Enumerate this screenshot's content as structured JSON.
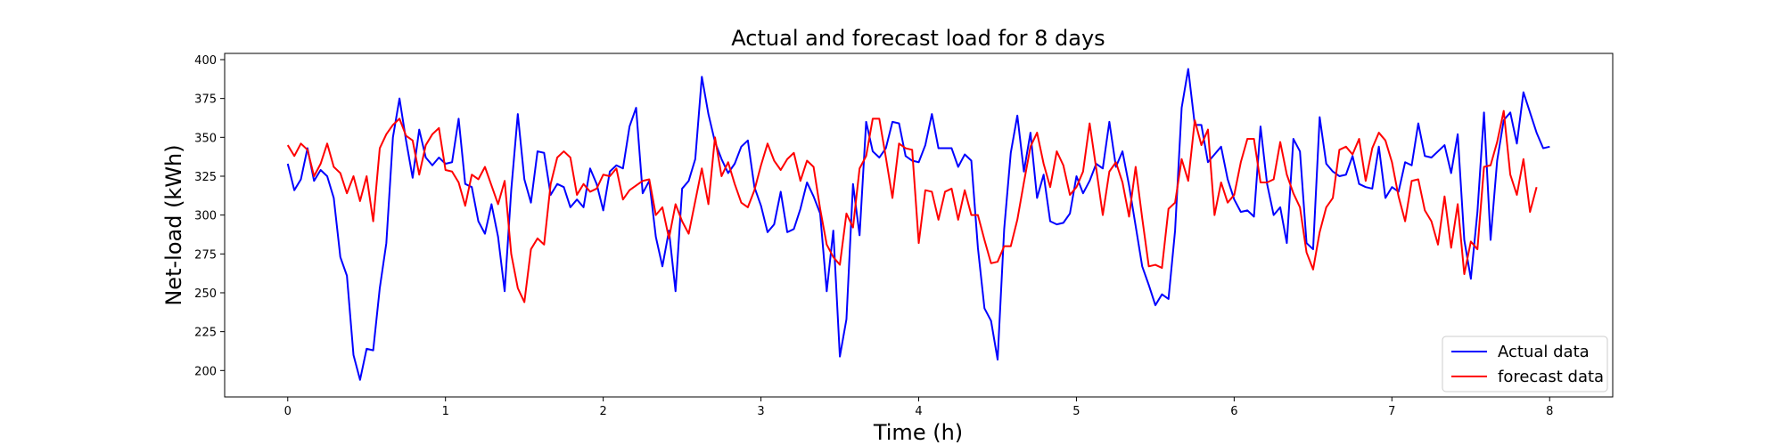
{
  "chart_data": {
    "type": "line",
    "title": "Actual and forecast load for 8 days",
    "xlabel": "Time (h)",
    "ylabel": "Net-load (kWh)",
    "xlim": [
      -0.4,
      8.4
    ],
    "ylim": [
      183,
      404
    ],
    "xticks": [
      0,
      1,
      2,
      3,
      4,
      5,
      6,
      7,
      8
    ],
    "yticks": [
      200,
      225,
      250,
      275,
      300,
      325,
      350,
      375,
      400
    ],
    "grid": false,
    "legend_position": "bottom-right",
    "x_step": 0.04167,
    "series": [
      {
        "name": "Actual data",
        "color": "#0000ff",
        "values": [
          333,
          316,
          323,
          343,
          322,
          329,
          325,
          311,
          273,
          261,
          210,
          194,
          214,
          213,
          253,
          282,
          350,
          375,
          348,
          324,
          355,
          337,
          332,
          337,
          333,
          334,
          362,
          320,
          318,
          296,
          288,
          307,
          286,
          251,
          316,
          365,
          323,
          308,
          341,
          340,
          313,
          320,
          318,
          305,
          310,
          305,
          330,
          320,
          303,
          328,
          332,
          330,
          357,
          369,
          314,
          322,
          286,
          267,
          290,
          251,
          317,
          322,
          336,
          389,
          365,
          347,
          336,
          327,
          333,
          344,
          348,
          318,
          306,
          289,
          294,
          315,
          289,
          291,
          304,
          321,
          312,
          301,
          251,
          290,
          209,
          233,
          320,
          287,
          360,
          341,
          337,
          343,
          360,
          359,
          338,
          335,
          334,
          345,
          365,
          343,
          343,
          343,
          331,
          339,
          335,
          279,
          240,
          232,
          207,
          291,
          340,
          364,
          328,
          353,
          311,
          326,
          296,
          294,
          295,
          301,
          325,
          314,
          322,
          333,
          330,
          360,
          331,
          341,
          319,
          293,
          267,
          255,
          242,
          249,
          246,
          290,
          369,
          394,
          358,
          358,
          334,
          339,
          344,
          323,
          310,
          302,
          303,
          299,
          357,
          320,
          300,
          305,
          282,
          349,
          341,
          282,
          278,
          363,
          333,
          328,
          325,
          326,
          338,
          320,
          318,
          317,
          344,
          311,
          318,
          315,
          334,
          332,
          359,
          338,
          337,
          341,
          345,
          327,
          352,
          284,
          259,
          302,
          366,
          284,
          335,
          361,
          366,
          346,
          379,
          366,
          353,
          343,
          344
        ]
      },
      {
        "name": "forecast data",
        "color": "#ff0000",
        "values": [
          345,
          338,
          346,
          342,
          325,
          333,
          346,
          331,
          327,
          314,
          325,
          309,
          325,
          296,
          343,
          352,
          358,
          362,
          351,
          348,
          326,
          345,
          352,
          356,
          329,
          328,
          321,
          306,
          326,
          323,
          331,
          319,
          307,
          322,
          275,
          253,
          244,
          278,
          285,
          281,
          320,
          337,
          341,
          337,
          313,
          320,
          315,
          317,
          326,
          325,
          330,
          310,
          316,
          319,
          322,
          323,
          300,
          305,
          285,
          307,
          296,
          288,
          309,
          330,
          307,
          350,
          325,
          334,
          320,
          308,
          305,
          316,
          332,
          346,
          335,
          329,
          336,
          340,
          322,
          335,
          331,
          304,
          281,
          273,
          268,
          301,
          292,
          330,
          338,
          362,
          362,
          337,
          311,
          346,
          343,
          342,
          282,
          316,
          315,
          297,
          315,
          317,
          297,
          316,
          300,
          300,
          284,
          269,
          270,
          280,
          280,
          297,
          321,
          344,
          353,
          333,
          318,
          341,
          332,
          313,
          318,
          328,
          359,
          330,
          300,
          328,
          334,
          321,
          299,
          331,
          298,
          267,
          268,
          266,
          304,
          308,
          336,
          322,
          361,
          345,
          355,
          300,
          321,
          308,
          313,
          334,
          349,
          349,
          321,
          321,
          323,
          347,
          326,
          314,
          305,
          276,
          265,
          289,
          305,
          311,
          342,
          344,
          339,
          349,
          322,
          343,
          353,
          348,
          334,
          312,
          296,
          322,
          323,
          303,
          296,
          281,
          312,
          279,
          307,
          262,
          283,
          278,
          331,
          332,
          347,
          367,
          326,
          313,
          336,
          302,
          318
        ]
      }
    ]
  }
}
